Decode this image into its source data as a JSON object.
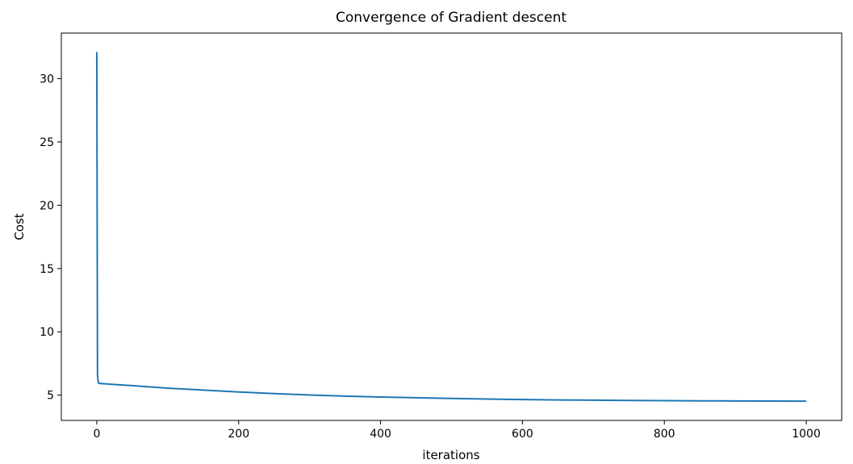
{
  "chart_data": {
    "type": "line",
    "title": "Convergence of Gradient descent",
    "xlabel": "iterations",
    "ylabel": "Cost",
    "xlim": [
      -50,
      1050
    ],
    "ylim": [
      3.0,
      33.6
    ],
    "xticks": [
      0,
      200,
      400,
      600,
      800,
      1000
    ],
    "yticks": [
      5,
      10,
      15,
      20,
      25,
      30
    ],
    "grid": false,
    "legend": "none",
    "series": [
      {
        "color": "#1f77b4",
        "x": [
          0,
          1,
          2,
          3,
          5,
          10,
          25,
          50,
          100,
          150,
          200,
          250,
          300,
          350,
          400,
          450,
          500,
          550,
          600,
          650,
          700,
          750,
          800,
          850,
          900,
          950,
          1000
        ],
        "y": [
          32.1,
          6.6,
          6.0,
          5.93,
          5.92,
          5.9,
          5.84,
          5.75,
          5.55,
          5.4,
          5.25,
          5.12,
          5.01,
          4.92,
          4.85,
          4.79,
          4.74,
          4.69,
          4.65,
          4.62,
          4.6,
          4.58,
          4.56,
          4.55,
          4.54,
          4.53,
          4.52
        ]
      }
    ]
  }
}
